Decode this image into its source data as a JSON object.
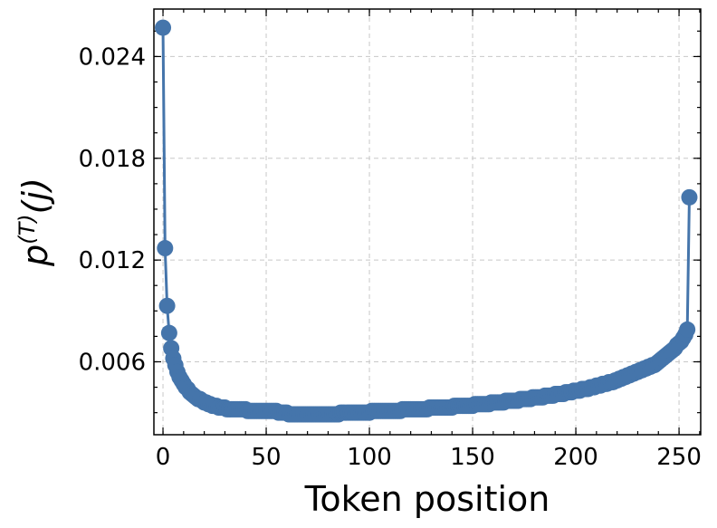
{
  "chart_data": {
    "type": "line",
    "xlabel": "Token position",
    "ylabel": {
      "base": "p",
      "sup": "(T)",
      "arg": "(j)"
    },
    "color": "#4575ab",
    "xlim": [
      -4.4,
      260.5
    ],
    "xticks": [
      0,
      50,
      100,
      150,
      200,
      250
    ],
    "ylim": [
      0.0017,
      0.0268
    ],
    "yticks": [
      0.006,
      0.012,
      0.018,
      0.024
    ],
    "grid": true,
    "x": [
      0,
      1,
      2,
      3,
      4,
      5,
      6,
      7,
      8,
      9,
      10,
      11,
      12,
      13,
      14,
      15,
      16,
      17,
      18,
      19,
      20,
      21,
      22,
      23,
      24,
      25,
      26,
      27,
      28,
      29,
      30,
      31,
      32,
      33,
      34,
      35,
      36,
      37,
      38,
      39,
      40,
      41,
      42,
      43,
      44,
      45,
      46,
      47,
      48,
      49,
      50,
      51,
      52,
      53,
      54,
      55,
      56,
      57,
      58,
      59,
      60,
      61,
      62,
      63,
      64,
      65,
      66,
      67,
      68,
      69,
      70,
      71,
      72,
      73,
      74,
      75,
      76,
      77,
      78,
      79,
      80,
      81,
      82,
      83,
      84,
      85,
      86,
      87,
      88,
      89,
      90,
      91,
      92,
      93,
      94,
      95,
      96,
      97,
      98,
      99,
      100,
      101,
      102,
      103,
      104,
      105,
      106,
      107,
      108,
      109,
      110,
      111,
      112,
      113,
      114,
      115,
      116,
      117,
      118,
      119,
      120,
      121,
      122,
      123,
      124,
      125,
      126,
      127,
      128,
      129,
      130,
      131,
      132,
      133,
      134,
      135,
      136,
      137,
      138,
      139,
      140,
      141,
      142,
      143,
      144,
      145,
      146,
      147,
      148,
      149,
      150,
      151,
      152,
      153,
      154,
      155,
      156,
      157,
      158,
      159,
      160,
      161,
      162,
      163,
      164,
      165,
      166,
      167,
      168,
      169,
      170,
      171,
      172,
      173,
      174,
      175,
      176,
      177,
      178,
      179,
      180,
      181,
      182,
      183,
      184,
      185,
      186,
      187,
      188,
      189,
      190,
      191,
      192,
      193,
      194,
      195,
      196,
      197,
      198,
      199,
      200,
      201,
      202,
      203,
      204,
      205,
      206,
      207,
      208,
      209,
      210,
      211,
      212,
      213,
      214,
      215,
      216,
      217,
      218,
      219,
      220,
      221,
      222,
      223,
      224,
      225,
      226,
      227,
      228,
      229,
      230,
      231,
      232,
      233,
      234,
      235,
      236,
      237,
      238,
      239,
      240,
      241,
      242,
      243,
      244,
      245,
      246,
      247,
      248,
      249,
      250,
      251,
      252,
      253,
      254,
      255
    ],
    "values": [
      0.0257,
      0.0127,
      0.0093,
      0.0077,
      0.0068,
      0.0062,
      0.0058,
      0.0054,
      0.0051,
      0.0049,
      0.0047,
      0.0045,
      0.0044,
      0.0042,
      0.0041,
      0.004,
      0.0039,
      0.0038,
      0.0038,
      0.0037,
      0.0036,
      0.0036,
      0.0035,
      0.0035,
      0.0034,
      0.0034,
      0.0034,
      0.0033,
      0.0033,
      0.0033,
      0.0033,
      0.0032,
      0.0032,
      0.0032,
      0.0032,
      0.0032,
      0.0032,
      0.0032,
      0.0032,
      0.0032,
      0.0032,
      0.0031,
      0.0031,
      0.0031,
      0.0031,
      0.0031,
      0.0031,
      0.0031,
      0.0031,
      0.0031,
      0.0031,
      0.0031,
      0.0031,
      0.0031,
      0.0031,
      0.0031,
      0.003,
      0.003,
      0.003,
      0.003,
      0.003,
      0.0029,
      0.0029,
      0.0029,
      0.0029,
      0.0029,
      0.0029,
      0.0029,
      0.0029,
      0.0029,
      0.0029,
      0.0029,
      0.0029,
      0.0029,
      0.0029,
      0.0029,
      0.0029,
      0.0029,
      0.0029,
      0.0029,
      0.0029,
      0.0029,
      0.0029,
      0.0029,
      0.0029,
      0.0029,
      0.003,
      0.003,
      0.003,
      0.003,
      0.003,
      0.003,
      0.003,
      0.003,
      0.003,
      0.003,
      0.003,
      0.003,
      0.003,
      0.003,
      0.003,
      0.0031,
      0.0031,
      0.0031,
      0.0031,
      0.0031,
      0.0031,
      0.0031,
      0.0031,
      0.0031,
      0.0031,
      0.0031,
      0.0031,
      0.0031,
      0.0031,
      0.0031,
      0.0032,
      0.0032,
      0.0032,
      0.0032,
      0.0032,
      0.0032,
      0.0032,
      0.0032,
      0.0032,
      0.0032,
      0.0032,
      0.0032,
      0.0032,
      0.0033,
      0.0033,
      0.0033,
      0.0033,
      0.0033,
      0.0033,
      0.0033,
      0.0033,
      0.0033,
      0.0033,
      0.0033,
      0.0033,
      0.0034,
      0.0034,
      0.0034,
      0.0034,
      0.0034,
      0.0034,
      0.0034,
      0.0034,
      0.0034,
      0.0034,
      0.0035,
      0.0035,
      0.0035,
      0.0035,
      0.0035,
      0.0035,
      0.0035,
      0.0035,
      0.0036,
      0.0036,
      0.0036,
      0.0036,
      0.0036,
      0.0036,
      0.0036,
      0.0037,
      0.0037,
      0.0037,
      0.0037,
      0.0037,
      0.0037,
      0.0037,
      0.0038,
      0.0038,
      0.0038,
      0.0038,
      0.0038,
      0.0038,
      0.0039,
      0.0039,
      0.0039,
      0.0039,
      0.0039,
      0.0039,
      0.004,
      0.004,
      0.004,
      0.004,
      0.004,
      0.0041,
      0.0041,
      0.0041,
      0.0041,
      0.0041,
      0.0042,
      0.0042,
      0.0042,
      0.0042,
      0.0043,
      0.0043,
      0.0043,
      0.0043,
      0.0044,
      0.0044,
      0.0044,
      0.0044,
      0.0045,
      0.0045,
      0.0045,
      0.0046,
      0.0046,
      0.0046,
      0.0047,
      0.0047,
      0.0047,
      0.0048,
      0.0048,
      0.0048,
      0.0049,
      0.0049,
      0.005,
      0.005,
      0.0051,
      0.0051,
      0.0052,
      0.0052,
      0.0053,
      0.0053,
      0.0054,
      0.0054,
      0.0055,
      0.0055,
      0.0056,
      0.0056,
      0.0057,
      0.0057,
      0.0058,
      0.0058,
      0.0059,
      0.006,
      0.0061,
      0.0062,
      0.0063,
      0.0064,
      0.0065,
      0.0066,
      0.0067,
      0.0068,
      0.007,
      0.0071,
      0.0072,
      0.0074,
      0.0076,
      0.0079,
      0.0157
    ]
  }
}
